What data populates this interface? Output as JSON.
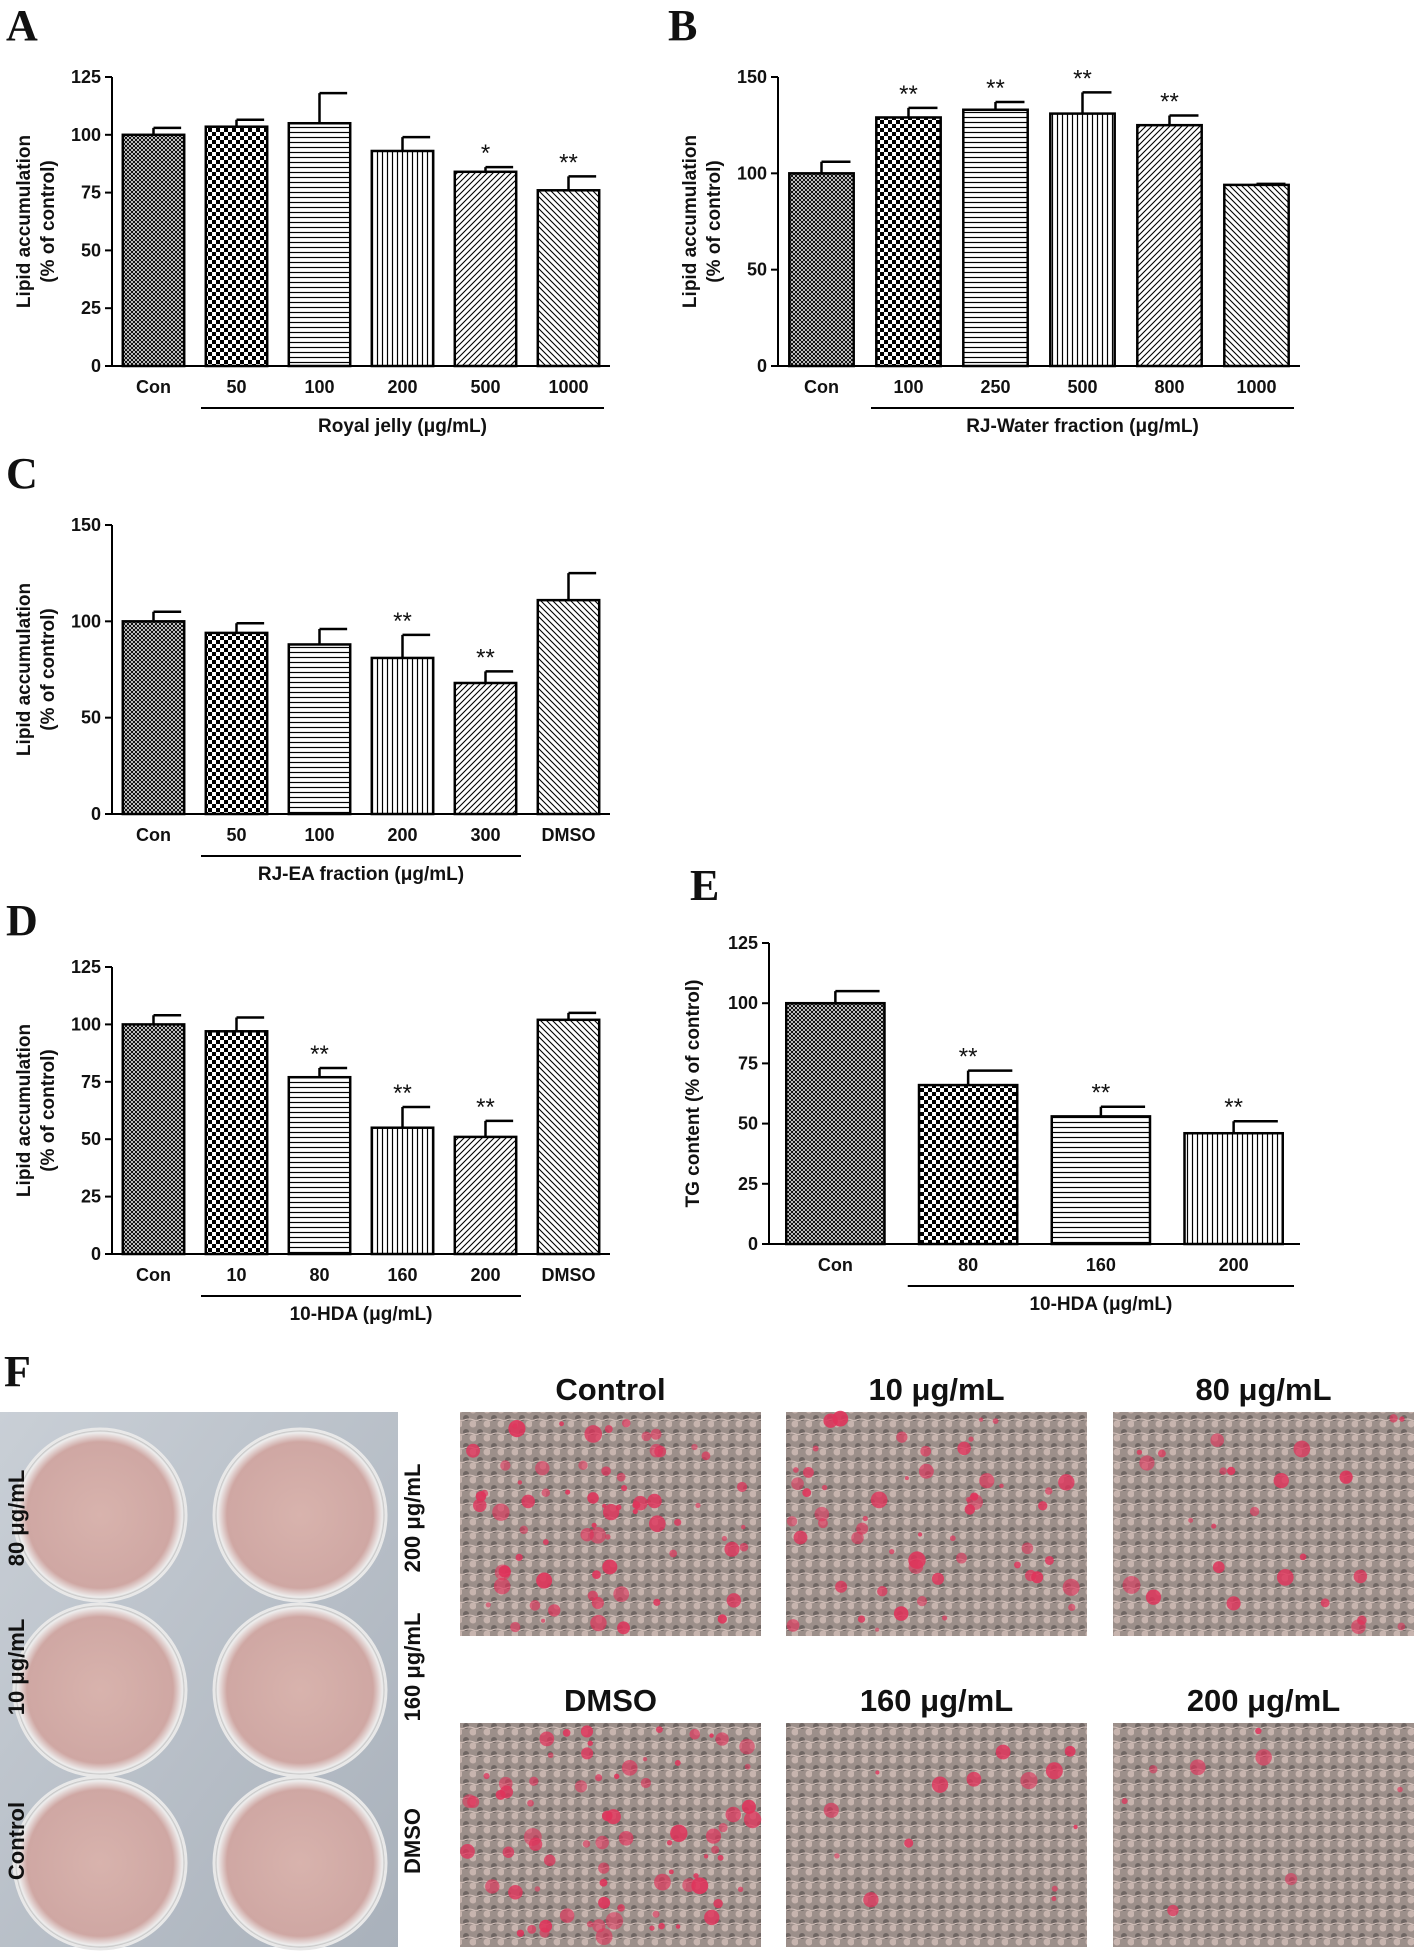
{
  "chart_data": [
    {
      "type": "bar",
      "panel": "A",
      "ylabel": [
        "Lipid accumulation",
        "(% of control)"
      ],
      "categories": [
        "Con",
        "50",
        "100",
        "200",
        "500",
        "1000"
      ],
      "values": [
        100,
        103.5,
        105,
        93,
        84,
        76
      ],
      "errors": [
        3,
        3,
        13,
        6,
        2,
        6
      ],
      "significance": [
        null,
        null,
        null,
        null,
        "*",
        "**"
      ],
      "groups": [
        {
          "label": "Royal jelly (μg/mL)",
          "first": 1,
          "last": 5
        }
      ],
      "ylim": [
        0,
        125
      ],
      "yticks": [
        0,
        25,
        50,
        75,
        100,
        125
      ]
    },
    {
      "type": "bar",
      "panel": "B",
      "ylabel": [
        "Lipid accumulation",
        "(% of control)"
      ],
      "categories": [
        "Con",
        "100",
        "250",
        "500",
        "800",
        "1000"
      ],
      "values": [
        100,
        129,
        133,
        131,
        125,
        94
      ],
      "errors": [
        6,
        5,
        4,
        11,
        5,
        0.5
      ],
      "significance": [
        null,
        "**",
        "**",
        "**",
        "**",
        null
      ],
      "groups": [
        {
          "label": "RJ-Water fraction (μg/mL)",
          "first": 1,
          "last": 5
        }
      ],
      "ylim": [
        0,
        150
      ],
      "yticks": [
        0,
        50,
        100,
        150
      ]
    },
    {
      "type": "bar",
      "panel": "C",
      "ylabel": [
        "Lipid accumulation",
        "(% of control)"
      ],
      "categories": [
        "Con",
        "50",
        "100",
        "200",
        "300",
        "DMSO"
      ],
      "values": [
        100,
        94,
        88,
        81,
        68,
        111
      ],
      "errors": [
        5,
        5,
        8,
        12,
        6,
        14
      ],
      "significance": [
        null,
        null,
        null,
        "**",
        "**",
        null
      ],
      "groups": [
        {
          "label": "RJ-EA fraction (μg/mL)",
          "first": 1,
          "last": 4
        }
      ],
      "ylim": [
        0,
        150
      ],
      "yticks": [
        0,
        50,
        100,
        150
      ]
    },
    {
      "type": "bar",
      "panel": "D",
      "ylabel": [
        "Lipid accumulation",
        "(% of control)"
      ],
      "categories": [
        "Con",
        "10",
        "80",
        "160",
        "200",
        "DMSO"
      ],
      "values": [
        100,
        97,
        77,
        55,
        51,
        102
      ],
      "errors": [
        4,
        6,
        4,
        9,
        7,
        3
      ],
      "significance": [
        null,
        null,
        "**",
        "**",
        "**",
        null
      ],
      "groups": [
        {
          "label": "10-HDA (μg/mL)",
          "first": 1,
          "last": 4
        }
      ],
      "ylim": [
        0,
        125
      ],
      "yticks": [
        0,
        25,
        50,
        75,
        100,
        125
      ]
    },
    {
      "type": "bar",
      "panel": "E",
      "ylabel": [
        "TG content (% of control)"
      ],
      "categories": [
        "Con",
        "80",
        "160",
        "200"
      ],
      "values": [
        100,
        66,
        53,
        46
      ],
      "errors": [
        5,
        6,
        4,
        5
      ],
      "significance": [
        null,
        "**",
        "**",
        "**"
      ],
      "groups": [
        {
          "label": "10-HDA (μg/mL)",
          "first": 1,
          "last": 3
        }
      ],
      "ylim": [
        0,
        125
      ],
      "yticks": [
        0,
        25,
        50,
        75,
        100,
        125
      ]
    }
  ],
  "panel_f": {
    "label": "F",
    "plate_labels_left": [
      "80 μg/mL",
      "10 μg/mL",
      "Control"
    ],
    "plate_labels_right": [
      "200 μg/mL",
      "160 μg/mL",
      "DMSO"
    ],
    "micrograph_titles": [
      "Control",
      "10 μg/mL",
      "80 μg/mL",
      "DMSO",
      "160 μg/mL",
      "200 μg/mL"
    ]
  }
}
